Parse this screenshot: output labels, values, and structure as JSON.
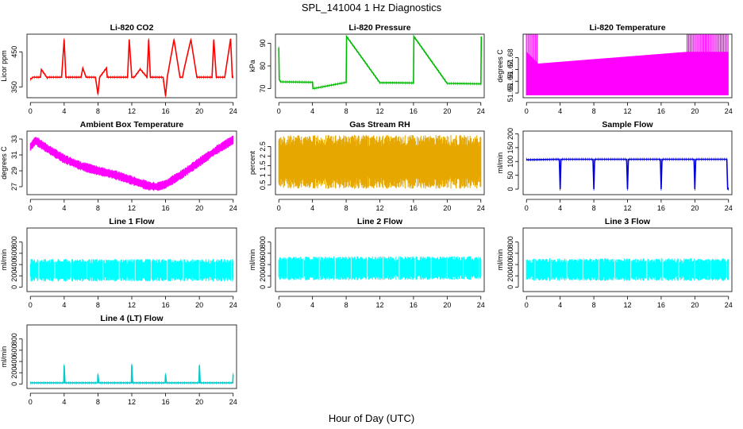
{
  "figure": {
    "title": "SPL_141004  1 Hz Diagnostics",
    "xlabel": "Hour of Day (UTC)"
  },
  "chart_data": [
    {
      "id": "co2",
      "type": "line",
      "title": "Li-820 CO2",
      "ylabel": "Licor ppm",
      "color": "#ff0000",
      "xlim": [
        -0.4,
        24.4
      ],
      "ylim": [
        320,
        500
      ],
      "xticks": [
        0,
        4,
        8,
        12,
        16,
        20,
        24
      ],
      "yticks": [
        350,
        450
      ],
      "series": [
        {
          "x": [
            0,
            0.3,
            1.2,
            1.3,
            2,
            2.1,
            3,
            3.7,
            4,
            4.2,
            5.1,
            6,
            6.2,
            6.6,
            7,
            7.7,
            8,
            8.2,
            9,
            9.1,
            10.2,
            11.5,
            11.7,
            12,
            12.3,
            13,
            13.8,
            14,
            14.2,
            15,
            15.7,
            16,
            16.2,
            17,
            17.7,
            18,
            18.2,
            19,
            19.7,
            20,
            20.2,
            21,
            21.5,
            21.7,
            22,
            22.5,
            23,
            23.7,
            23.9,
            24
          ],
          "y": [
            372,
            378,
            378,
            400,
            376,
            378,
            378,
            378,
            485,
            378,
            378,
            378,
            404,
            378,
            378,
            378,
            330,
            378,
            404,
            378,
            378,
            378,
            485,
            378,
            378,
            401,
            378,
            485,
            378,
            378,
            378,
            325,
            378,
            485,
            378,
            378,
            402,
            485,
            378,
            378,
            378,
            378,
            378,
            485,
            378,
            378,
            378,
            487,
            378,
            378
          ]
        }
      ]
    },
    {
      "id": "pressure",
      "type": "line",
      "title": "Li-820 Pressure",
      "ylabel": "kPa",
      "color": "#00bb00",
      "xlim": [
        -0.4,
        24.4
      ],
      "ylim": [
        66,
        94
      ],
      "xticks": [
        0,
        4,
        8,
        12,
        16,
        20,
        24
      ],
      "yticks": [
        70,
        80,
        90
      ],
      "series": [
        {
          "x": [
            0,
            0.05,
            0.2,
            4,
            4.05,
            8,
            8.05,
            12,
            16,
            16.05,
            20,
            24,
            24.05
          ],
          "y": [
            88,
            74,
            73,
            72.8,
            70,
            72.8,
            93,
            72.6,
            72.5,
            93,
            72.3,
            72.1,
            93
          ]
        }
      ]
    },
    {
      "id": "temperature",
      "type": "area",
      "title": "Li-820 Temperature",
      "ylabel": "degrees C",
      "color": "#ff00ff",
      "xlim": [
        -0.4,
        24.4
      ],
      "ylim": [
        51.646,
        51.7
      ],
      "xticks": [
        0,
        4,
        8,
        12,
        16,
        20,
        24
      ],
      "yticks": [
        51.65,
        51.66,
        51.67,
        51.68
      ],
      "series": [
        {
          "x": [
            0,
            1.4,
            19,
            24
          ],
          "y": [
            51.685,
            51.675,
            51.685,
            51.685
          ],
          "min": 51.648
        }
      ]
    },
    {
      "id": "ambient",
      "type": "band",
      "title": "Ambient Box Temperature",
      "ylabel": "degrees C",
      "color": "#ff00ff",
      "xlim": [
        -0.4,
        24.4
      ],
      "ylim": [
        26,
        34
      ],
      "xticks": [
        0,
        4,
        8,
        12,
        16,
        20,
        24
      ],
      "yticks": [
        27,
        29,
        31,
        33
      ],
      "series": [
        {
          "x": [
            0,
            0.6,
            2,
            4,
            6,
            8,
            10,
            12,
            14,
            15,
            16,
            18,
            20,
            22,
            24
          ],
          "y": [
            32,
            32.8,
            31.8,
            30.5,
            29.6,
            29,
            28.5,
            27.8,
            27.1,
            27,
            27.3,
            28.6,
            30.1,
            31.6,
            32.9
          ],
          "spread": 0.6
        }
      ]
    },
    {
      "id": "rh",
      "type": "band",
      "title": "Gas Stream RH",
      "ylabel": "percent",
      "color": "#e6a800",
      "xlim": [
        -0.4,
        24.4
      ],
      "ylim": [
        0,
        3.3
      ],
      "xticks": [
        0,
        4,
        8,
        12,
        16,
        20,
        24
      ],
      "yticks": [
        0.5,
        1,
        1.5,
        2,
        2.5
      ],
      "series": [
        {
          "x": [
            0,
            24
          ],
          "y": [
            1.7,
            1.7
          ],
          "spread": 1.4
        }
      ]
    },
    {
      "id": "sample_flow",
      "type": "line",
      "title": "Sample Flow",
      "ylabel": "ml/min",
      "color": "#0000dd",
      "xlim": [
        -0.4,
        24.4
      ],
      "ylim": [
        -20,
        210
      ],
      "xticks": [
        0,
        4,
        8,
        12,
        16,
        20,
        24
      ],
      "yticks": [
        0,
        50,
        100,
        150,
        200
      ],
      "series": [
        {
          "x": [
            0,
            0.1,
            3.9,
            4,
            4.1,
            7.9,
            8,
            8.1,
            11.9,
            12,
            12.1,
            15.9,
            16,
            16.1,
            19.9,
            20,
            20.1,
            23.8,
            23.9,
            24
          ],
          "y": [
            108,
            106,
            108,
            0,
            108,
            108,
            0,
            108,
            108,
            0,
            108,
            108,
            0,
            108,
            108,
            0,
            108,
            108,
            0,
            0
          ]
        }
      ]
    },
    {
      "id": "line1",
      "type": "band",
      "title": "Line 1 Flow",
      "ylabel": "ml/min",
      "color": "#00ffff",
      "xlim": [
        -0.4,
        24.4
      ],
      "ylim": [
        -80,
        1050
      ],
      "xticks": [
        0,
        4,
        8,
        12,
        16,
        20,
        24
      ],
      "yticks": [
        0,
        200,
        400,
        600,
        800
      ],
      "series": [
        {
          "x": [
            0,
            24
          ],
          "y": [
            300,
            300
          ],
          "spread": 200
        }
      ]
    },
    {
      "id": "line2",
      "type": "band",
      "title": "Line 2 Flow",
      "ylabel": "ml/min",
      "color": "#00ffff",
      "xlim": [
        -0.4,
        24.4
      ],
      "ylim": [
        -80,
        1050
      ],
      "xticks": [
        0,
        4,
        8,
        12,
        16,
        20,
        24
      ],
      "yticks": [
        0,
        200,
        400,
        600,
        800
      ],
      "series": [
        {
          "x": [
            0,
            24
          ],
          "y": [
            330,
            340
          ],
          "spread": 210
        }
      ]
    },
    {
      "id": "line3",
      "type": "band",
      "title": "Line 3 Flow",
      "ylabel": "ml/min",
      "color": "#00ffff",
      "xlim": [
        -0.4,
        24.4
      ],
      "ylim": [
        -80,
        1050
      ],
      "xticks": [
        0,
        4,
        8,
        12,
        16,
        20,
        24
      ],
      "yticks": [
        0,
        200,
        400,
        600,
        800
      ],
      "series": [
        {
          "x": [
            0,
            24
          ],
          "y": [
            310,
            310
          ],
          "spread": 200
        }
      ]
    },
    {
      "id": "line4",
      "type": "line",
      "title": "Line 4 (LT) Flow",
      "ylabel": "ml/min",
      "color": "#00cccc",
      "xlim": [
        -0.4,
        24.4
      ],
      "ylim": [
        -80,
        1050
      ],
      "xticks": [
        0,
        4,
        8,
        12,
        16,
        20,
        24
      ],
      "yticks": [
        0,
        200,
        400,
        600,
        800
      ],
      "series": [
        {
          "x": [
            0,
            3.95,
            4,
            4.1,
            7.95,
            8,
            8.1,
            11.95,
            12,
            12.1,
            15.95,
            16,
            16.1,
            19.95,
            20,
            20.1,
            23.95,
            24
          ],
          "y": [
            20,
            20,
            330,
            20,
            20,
            170,
            20,
            20,
            340,
            20,
            20,
            170,
            20,
            20,
            330,
            20,
            20,
            170
          ]
        }
      ]
    }
  ]
}
